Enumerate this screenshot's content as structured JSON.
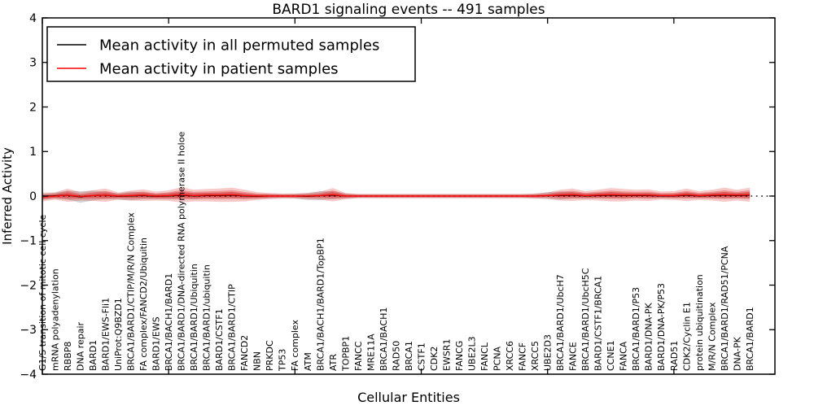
{
  "figure": {
    "title": "BARD1 signaling events -- 491 samples",
    "xlabel": "Cellular Entities",
    "ylabel": "Inferred Activity"
  },
  "legend": {
    "entries": [
      {
        "label": "Mean activity in all permuted samples",
        "color": "#000000"
      },
      {
        "label": "Mean activity in patient samples",
        "color": "#ff0000"
      }
    ]
  },
  "chart_data": {
    "type": "line",
    "title": "BARD1 signaling events -- 491 samples",
    "xlabel": "Cellular Entities",
    "ylabel": "Inferred Activity",
    "ylim": [
      -4,
      4
    ],
    "yticks": [
      4,
      3,
      2,
      1,
      0,
      -1,
      -2,
      -3,
      -4
    ],
    "xtick_indices": [
      0,
      10,
      20,
      30,
      40,
      50
    ],
    "grid": false,
    "legend_position": "upper left",
    "zero_line": "dotted",
    "band_colors": {
      "patient": "#e03030",
      "permuted": "#999999"
    },
    "categories": [
      "G1/S transition of mitotic cell cycle",
      "mRNA polyadenylation",
      "RBBP8",
      "DNA repair",
      "BARD1",
      "BARD1/EWS-Fli1",
      "UniProt:Q9BZD1",
      "BRCA1/BARD1/CTIP/M/R/N Complex",
      "FA complex/FANCD2/Ubiquitin",
      "BARD1/EWS",
      "BRCA1/BACH1/BARD1",
      "BRCA1/BARD1/DNA-directed RNA polymerase II holoe",
      "BRCA1/BARD1/Ubiquitin",
      "BRCA1/BARD1/ubiquitin",
      "BARD1/CSTF1",
      "BRCA1/BARD1/CTIP",
      "FANCD2",
      "NBN",
      "PRKDC",
      "TP53",
      "FA complex",
      "ATM",
      "BRCA1/BACH1/BARD1/TopBP1",
      "ATR",
      "TOPBP1",
      "FANCC",
      "MRE11A",
      "BRCA1/BACH1",
      "RAD50",
      "BRCA1",
      "CSTF1",
      "CDK2",
      "EWSR1",
      "FANCG",
      "UBE2L3",
      "FANCL",
      "PCNA",
      "XRCC6",
      "FANCF",
      "XRCC5",
      "UBE2D3",
      "BRCA1/BARD1/UbcH7",
      "FANCE",
      "BRCA1/BARD1/UbcH5C",
      "BARD1/CSTF1/BRCA1",
      "CCNE1",
      "FANCA",
      "BRCA1/BARD1/P53",
      "BARD1/DNA-PK",
      "BARD1/DNA-PK/P53",
      "RAD51",
      "CDK2/Cyclin E1",
      "protein ubiquitination",
      "M/R/N Complex",
      "BRCA1/BARD1/RAD51/PCNA",
      "DNA-PK",
      "BRCA1/BARD1"
    ],
    "series": [
      {
        "name": "Mean activity in all permuted samples",
        "color": "#000000",
        "values": [
          -0.01,
          0.01,
          0.02,
          -0.02,
          0.01,
          0.02,
          -0.01,
          0.0,
          0.01,
          -0.01,
          0.0,
          0.02,
          0.0,
          0.01,
          0.01,
          0.02,
          0.0,
          -0.01,
          0.0,
          0.0,
          0.0,
          -0.01,
          0.01,
          0.02,
          0.0,
          0.0,
          0.0,
          0.0,
          0.0,
          0.0,
          0.0,
          0.0,
          0.0,
          0.0,
          0.0,
          0.0,
          0.0,
          0.0,
          0.0,
          0.0,
          0.01,
          0.01,
          0.02,
          0.0,
          0.01,
          0.02,
          0.01,
          0.01,
          0.01,
          0.0,
          0.0,
          0.02,
          0.0,
          0.01,
          0.02,
          0.01,
          0.02
        ],
        "band_half_width": [
          0.06,
          0.07,
          0.1,
          0.13,
          0.11,
          0.08,
          0.07,
          0.1,
          0.08,
          0.06,
          0.07,
          0.08,
          0.07,
          0.06,
          0.06,
          0.07,
          0.06,
          0.05,
          0.05,
          0.04,
          0.05,
          0.08,
          0.1,
          0.09,
          0.06,
          0.04,
          0.04,
          0.04,
          0.04,
          0.04,
          0.04,
          0.04,
          0.04,
          0.04,
          0.04,
          0.04,
          0.04,
          0.04,
          0.04,
          0.05,
          0.08,
          0.09,
          0.07,
          0.06,
          0.06,
          0.07,
          0.06,
          0.05,
          0.06,
          0.05,
          0.05,
          0.06,
          0.05,
          0.06,
          0.07,
          0.06,
          0.07
        ]
      },
      {
        "name": "Mean activity in patient samples",
        "color": "#ff0000",
        "values": [
          -0.02,
          0.0,
          0.02,
          -0.01,
          0.01,
          0.02,
          0.0,
          0.01,
          0.02,
          0.0,
          0.01,
          0.03,
          0.01,
          0.02,
          0.02,
          0.03,
          0.01,
          0.0,
          0.0,
          0.0,
          0.0,
          0.0,
          0.01,
          0.03,
          0.0,
          0.0,
          0.0,
          0.0,
          0.0,
          0.0,
          0.0,
          0.0,
          0.0,
          0.0,
          0.0,
          0.0,
          0.0,
          0.0,
          0.0,
          0.0,
          0.01,
          0.02,
          0.03,
          0.01,
          0.02,
          0.03,
          0.02,
          0.02,
          0.02,
          0.01,
          0.01,
          0.03,
          0.01,
          0.02,
          0.03,
          0.02,
          0.03
        ],
        "band_half_width": [
          0.1,
          0.08,
          0.15,
          0.09,
          0.12,
          0.15,
          0.08,
          0.11,
          0.13,
          0.1,
          0.12,
          0.17,
          0.13,
          0.14,
          0.15,
          0.16,
          0.13,
          0.09,
          0.07,
          0.06,
          0.06,
          0.07,
          0.09,
          0.15,
          0.07,
          0.05,
          0.05,
          0.05,
          0.05,
          0.05,
          0.05,
          0.05,
          0.05,
          0.05,
          0.05,
          0.05,
          0.05,
          0.05,
          0.05,
          0.06,
          0.07,
          0.12,
          0.14,
          0.1,
          0.12,
          0.15,
          0.14,
          0.12,
          0.13,
          0.09,
          0.1,
          0.14,
          0.1,
          0.12,
          0.16,
          0.12,
          0.16
        ]
      }
    ]
  }
}
